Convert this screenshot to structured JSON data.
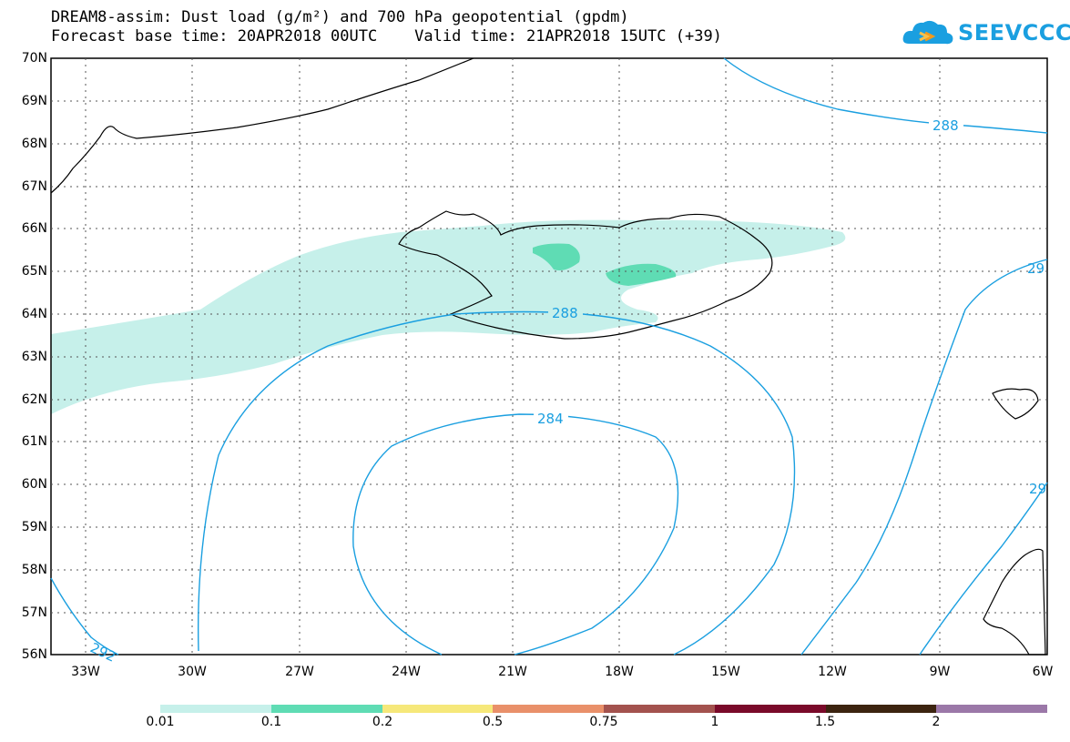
{
  "title_line1": "DREAM8-assim: Dust load (g/m²) and 700 hPa geopotential (gpdm)",
  "title_line2": "Forecast base time: 20APR2018 00UTC    Valid time: 21APR2018 15UTC (+39)",
  "logo_text": "SEEVCCC",
  "lat_labels": [
    "70N",
    "69N",
    "68N",
    "67N",
    "66N",
    "65N",
    "64N",
    "63N",
    "62N",
    "61N",
    "60N",
    "59N",
    "58N",
    "57N",
    "56N"
  ],
  "lon_labels": [
    "33W",
    "30W",
    "27W",
    "24W",
    "21W",
    "18W",
    "15W",
    "12W",
    "9W",
    "6W"
  ],
  "contour_labels": [
    "288",
    "288",
    "284",
    "292",
    "29",
    "29"
  ],
  "colorbar": {
    "ticks": [
      "0.01",
      "0.1",
      "0.2",
      "0.5",
      "0.75",
      "1",
      "1.5",
      "2"
    ],
    "colors": [
      "#c6f0ea",
      "#5fdcb4",
      "#f6e87a",
      "#e9906a",
      "#a3524e",
      "#7a0a2a",
      "#3c2410",
      "#9b78a8"
    ]
  },
  "colors": {
    "contour": "#1a9fe0",
    "grid": "#555555",
    "coast": "#000000"
  }
}
